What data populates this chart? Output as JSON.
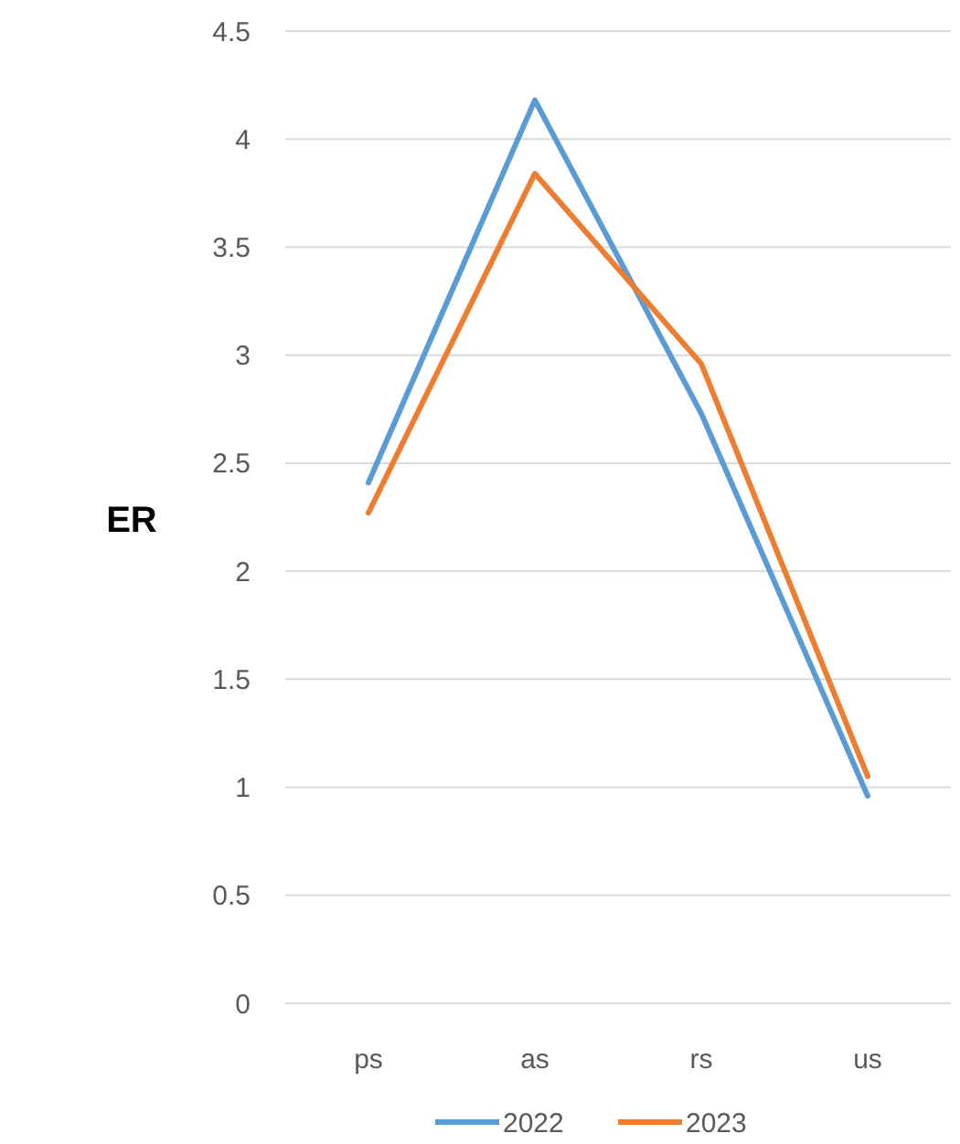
{
  "chart_data": {
    "type": "line",
    "ylabel": "ER",
    "categories": [
      "ps",
      "as",
      "rs",
      "us"
    ],
    "series": [
      {
        "name": "2022",
        "color": "#5b9bd5",
        "values": [
          2.41,
          4.18,
          2.73,
          0.96
        ]
      },
      {
        "name": "2023",
        "color": "#ed7d31",
        "values": [
          2.27,
          3.84,
          2.96,
          1.05
        ]
      }
    ],
    "ylim": [
      0,
      4.5
    ],
    "yticks": [
      0,
      0.5,
      1,
      1.5,
      2,
      2.5,
      3,
      3.5,
      4,
      4.5
    ],
    "grid": "y",
    "legend": "bottom",
    "marker": "none",
    "line_style": "solid"
  }
}
